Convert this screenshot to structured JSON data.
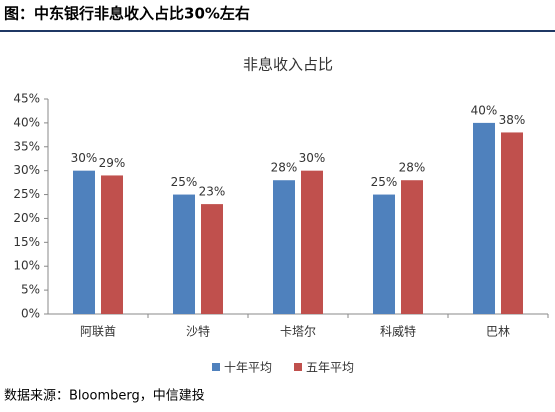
{
  "header": {
    "title": "图：中东银行非息收入占比30%左右"
  },
  "chart_data": {
    "type": "bar",
    "title": "非息收入占比",
    "categories": [
      "阿联酋",
      "沙特",
      "卡塔尔",
      "科威特",
      "巴林"
    ],
    "series": [
      {
        "name": "十年平均",
        "color": "#4f81bd",
        "values": [
          30,
          25,
          28,
          25,
          40
        ],
        "value_labels": [
          "30%",
          "25%",
          "28%",
          "25%",
          "40%"
        ]
      },
      {
        "name": "五年平均",
        "color": "#c0504d",
        "values": [
          29,
          23,
          30,
          28,
          38
        ],
        "value_labels": [
          "29%",
          "23%",
          "30%",
          "28%",
          "38%"
        ]
      }
    ],
    "ylim": [
      0,
      45
    ],
    "yticks": [
      {
        "value": 0,
        "label": "0%"
      },
      {
        "value": 5,
        "label": "5%"
      },
      {
        "value": 10,
        "label": "10%"
      },
      {
        "value": 15,
        "label": "15%"
      },
      {
        "value": 20,
        "label": "20%"
      },
      {
        "value": 25,
        "label": "25%"
      },
      {
        "value": 30,
        "label": "30%"
      },
      {
        "value": 35,
        "label": "35%"
      },
      {
        "value": 40,
        "label": "40%"
      },
      {
        "value": 45,
        "label": "45%"
      }
    ],
    "grid": false,
    "legend": "bottom"
  },
  "footer": {
    "source": "数据来源：Bloomberg，中信建投"
  }
}
